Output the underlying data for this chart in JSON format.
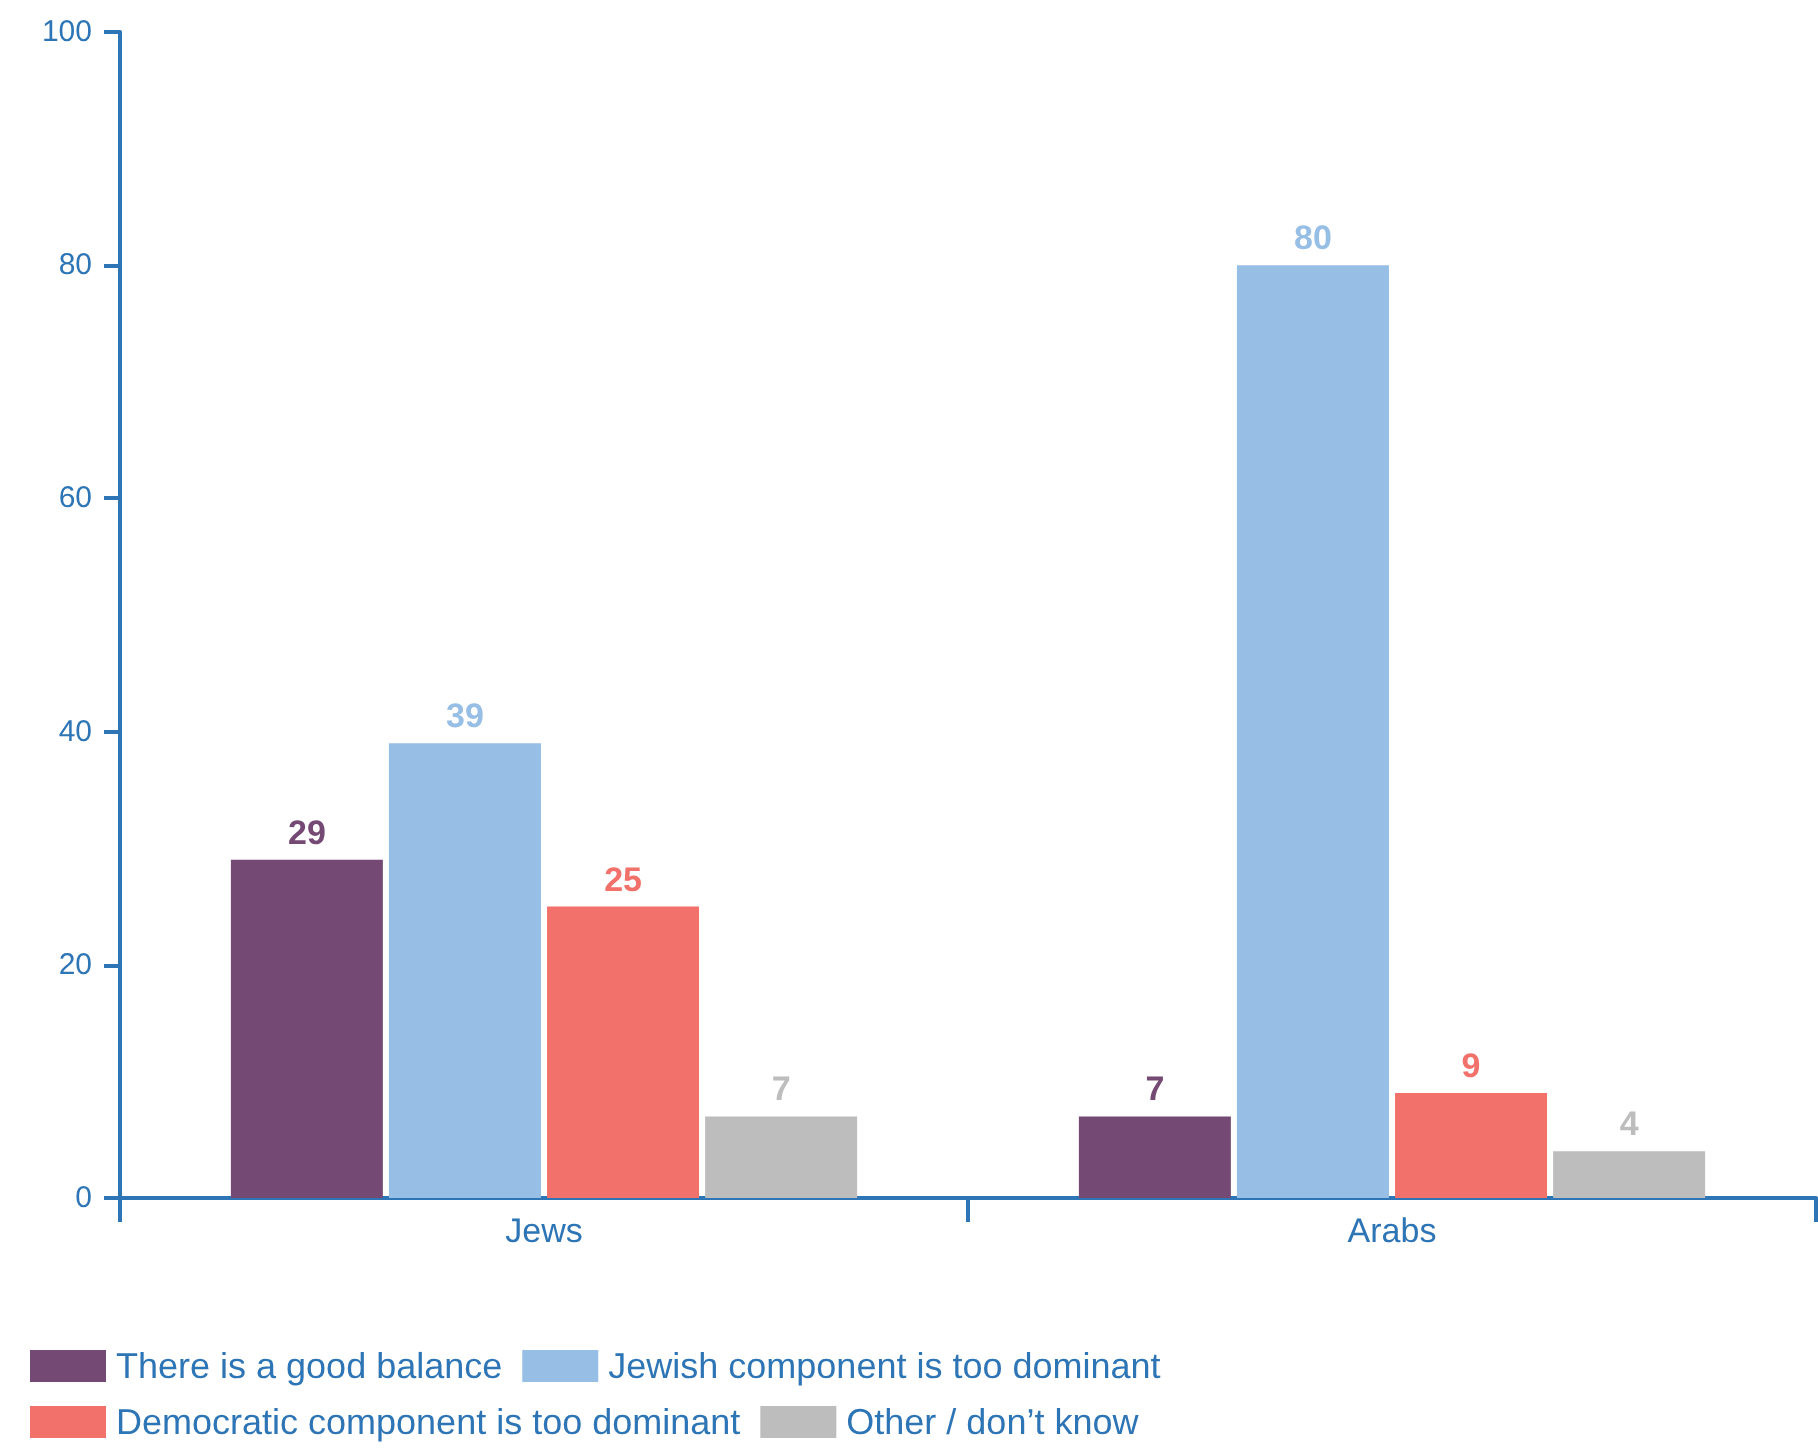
{
  "chart_data": {
    "type": "bar",
    "categories": [
      "Jews",
      "Arabs"
    ],
    "series": [
      {
        "name": "There is a good balance",
        "color": "#744a74",
        "values": [
          29,
          7
        ]
      },
      {
        "name": "Jewish component is too dominant",
        "color": "#97bee5",
        "values": [
          39,
          80
        ]
      },
      {
        "name": "Democratic component is too dominant",
        "color": "#f2716b",
        "values": [
          25,
          9
        ]
      },
      {
        "name": "Other / don’t know",
        "color": "#bdbdbd",
        "values": [
          7,
          4
        ]
      }
    ],
    "ylim": [
      0,
      100
    ],
    "yticks": [
      0,
      20,
      40,
      60,
      80,
      100
    ],
    "grid": false,
    "legend": "bottom left",
    "data_labels": true
  }
}
